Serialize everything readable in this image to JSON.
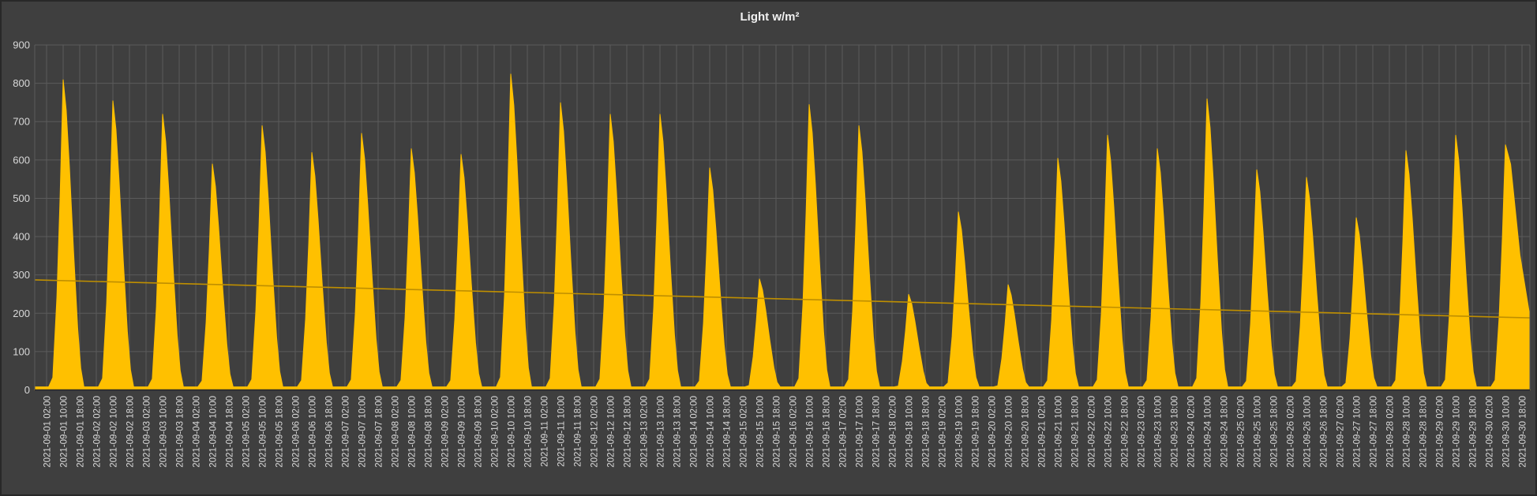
{
  "window": {
    "title": "Light w/m²"
  },
  "colors": {
    "background": "#3F3F3F",
    "plot_background": "#3F3F3F",
    "gridline": "#5B5B5B",
    "area": "#FFC000",
    "trend_line": "#BF8F00",
    "axis_text": "#D9D9D9",
    "title_text": "#F1F1F1",
    "axis_line": "#262626"
  },
  "chart_data": {
    "type": "area",
    "title": "Light w/m²",
    "xlabel": "",
    "ylabel": "",
    "ylim": [
      0,
      900
    ],
    "y_ticks": [
      0,
      100,
      200,
      300,
      400,
      500,
      600,
      700,
      800,
      900
    ],
    "grid": true,
    "legend": "none",
    "x_tick_interval_hours": 8,
    "x_tick_labels": [
      "2021-09-01 02:00",
      "2021-09-01 10:00",
      "2021-09-01 18:00",
      "2021-09-02 02:00",
      "2021-09-02 10:00",
      "2021-09-02 18:00",
      "2021-09-03 02:00",
      "2021-09-03 10:00",
      "2021-09-03 18:00",
      "2021-09-04 02:00",
      "2021-09-04 10:00",
      "2021-09-04 18:00",
      "2021-09-05 02:00",
      "2021-09-05 10:00",
      "2021-09-05 18:00",
      "2021-09-06 02:00",
      "2021-09-06 10:00",
      "2021-09-06 18:00",
      "2021-09-07 02:00",
      "2021-09-07 10:00",
      "2021-09-07 18:00",
      "2021-09-08 02:00",
      "2021-09-08 10:00",
      "2021-09-08 18:00",
      "2021-09-09 02:00",
      "2021-09-09 10:00",
      "2021-09-09 18:00",
      "2021-09-10 02:00",
      "2021-09-10 10:00",
      "2021-09-10 18:00",
      "2021-09-11 02:00",
      "2021-09-11 10:00",
      "2021-09-11 18:00",
      "2021-09-12 02:00",
      "2021-09-12 10:00",
      "2021-09-12 18:00",
      "2021-09-13 02:00",
      "2021-09-13 10:00",
      "2021-09-13 18:00",
      "2021-09-14 02:00",
      "2021-09-14 10:00",
      "2021-09-14 18:00",
      "2021-09-15 02:00",
      "2021-09-15 10:00",
      "2021-09-15 18:00",
      "2021-09-16 02:00",
      "2021-09-16 10:00",
      "2021-09-16 18:00",
      "2021-09-17 02:00",
      "2021-09-17 10:00",
      "2021-09-17 18:00",
      "2021-09-18 02:00",
      "2021-09-18 10:00",
      "2021-09-18 18:00",
      "2021-09-19 02:00",
      "2021-09-19 10:00",
      "2021-09-19 18:00",
      "2021-09-20 02:00",
      "2021-09-20 10:00",
      "2021-09-20 18:00",
      "2021-09-21 02:00",
      "2021-09-21 10:00",
      "2021-09-21 18:00",
      "2021-09-22 02:00",
      "2021-09-22 10:00",
      "2021-09-22 18:00",
      "2021-09-23 02:00",
      "2021-09-23 10:00",
      "2021-09-23 18:00",
      "2021-09-24 02:00",
      "2021-09-24 10:00",
      "2021-09-24 18:00",
      "2021-09-25 02:00",
      "2021-09-25 10:00",
      "2021-09-25 18:00",
      "2021-09-26 02:00",
      "2021-09-26 10:00",
      "2021-09-26 18:00",
      "2021-09-27 02:00",
      "2021-09-27 10:00",
      "2021-09-27 18:00",
      "2021-09-28 02:00",
      "2021-09-28 10:00",
      "2021-09-28 18:00",
      "2021-09-29 02:00",
      "2021-09-29 10:00",
      "2021-09-29 18:00",
      "2021-09-30 02:00",
      "2021-09-30 10:00",
      "2021-09-30 18:00"
    ],
    "series": [
      {
        "name": "Light w/m²",
        "type": "area",
        "color": "#FFC000",
        "pattern": "diurnal solar cycle, zero at night, mid-day peak",
        "night_floor": 8,
        "daily_peaks": [
          {
            "date": "2021-09-01",
            "peak": 810
          },
          {
            "date": "2021-09-02",
            "peak": 755
          },
          {
            "date": "2021-09-03",
            "peak": 720
          },
          {
            "date": "2021-09-04",
            "peak": 590
          },
          {
            "date": "2021-09-05",
            "peak": 690
          },
          {
            "date": "2021-09-06",
            "peak": 620
          },
          {
            "date": "2021-09-07",
            "peak": 670
          },
          {
            "date": "2021-09-08",
            "peak": 630
          },
          {
            "date": "2021-09-09",
            "peak": 615
          },
          {
            "date": "2021-09-10",
            "peak": 825
          },
          {
            "date": "2021-09-11",
            "peak": 750
          },
          {
            "date": "2021-09-12",
            "peak": 720
          },
          {
            "date": "2021-09-13",
            "peak": 720
          },
          {
            "date": "2021-09-14",
            "peak": 580
          },
          {
            "date": "2021-09-15",
            "peak": 290
          },
          {
            "date": "2021-09-16",
            "peak": 745
          },
          {
            "date": "2021-09-17",
            "peak": 690
          },
          {
            "date": "2021-09-18",
            "peak": 250
          },
          {
            "date": "2021-09-19",
            "peak": 465
          },
          {
            "date": "2021-09-20",
            "peak": 275
          },
          {
            "date": "2021-09-21",
            "peak": 605
          },
          {
            "date": "2021-09-22",
            "peak": 665
          },
          {
            "date": "2021-09-23",
            "peak": 630
          },
          {
            "date": "2021-09-24",
            "peak": 760
          },
          {
            "date": "2021-09-25",
            "peak": 575
          },
          {
            "date": "2021-09-26",
            "peak": 555
          },
          {
            "date": "2021-09-27",
            "peak": 450
          },
          {
            "date": "2021-09-28",
            "peak": 625
          },
          {
            "date": "2021-09-29",
            "peak": 665
          },
          {
            "date": "2021-09-30",
            "peak": 640
          }
        ]
      },
      {
        "name": "Trend",
        "type": "line",
        "color": "#BF8F00",
        "start_value": 287,
        "end_value": 188
      }
    ],
    "diurnal_profile_hour_fraction": [
      [
        3,
        0
      ],
      [
        5,
        0.04
      ],
      [
        7,
        0.3
      ],
      [
        8.5,
        0.62
      ],
      [
        10,
        1.0
      ],
      [
        11.5,
        0.9
      ],
      [
        13,
        0.72
      ],
      [
        15,
        0.45
      ],
      [
        17,
        0.2
      ],
      [
        18.5,
        0.07
      ],
      [
        20,
        0
      ]
    ],
    "last_day_tail_hour_fraction": [
      [
        12.5,
        0.92
      ],
      [
        17,
        0.55
      ],
      [
        21.9,
        0.3
      ]
    ]
  }
}
